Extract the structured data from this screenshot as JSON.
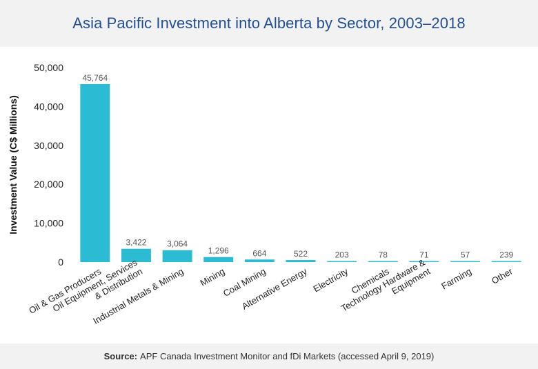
{
  "chart_data": {
    "type": "bar",
    "title": "Asia Pacific Investment into Alberta by Sector, 2003–2018",
    "ylabel": "Investment Value (C$ Millions)",
    "xlabel": "",
    "ylim": [
      0,
      50000
    ],
    "yticks": [
      0,
      10000,
      20000,
      30000,
      40000,
      50000
    ],
    "ytick_labels": [
      "0",
      "10,000",
      "20,000",
      "30,000",
      "40,000",
      "50,000"
    ],
    "grid": false,
    "categories": [
      "Oil & Gas Producers",
      "Oil Equipment, Services\n& Distribution",
      "Industrial Metals & Mining",
      "Mining",
      "Coal Mining",
      "Alternative Energy",
      "Electricity",
      "Chemicals",
      "Technology Hardware &\nEquipment",
      "Farming",
      "Other"
    ],
    "values": [
      45764,
      3422,
      3064,
      1296,
      664,
      522,
      203,
      78,
      71,
      57,
      239
    ],
    "value_labels": [
      "45,764",
      "3,422",
      "3,064",
      "1,296",
      "664",
      "522",
      "203",
      "78",
      "71",
      "57",
      "239"
    ],
    "bar_color": "#2bbbd3"
  },
  "source": {
    "label": "Source:",
    "text": "APF Canada Investment Monitor and fDi Markets (accessed April 9, 2019)"
  },
  "colors": {
    "title": "#1f4e97",
    "band_background": "#f2f2f2",
    "bar": "#2bbbd3"
  }
}
